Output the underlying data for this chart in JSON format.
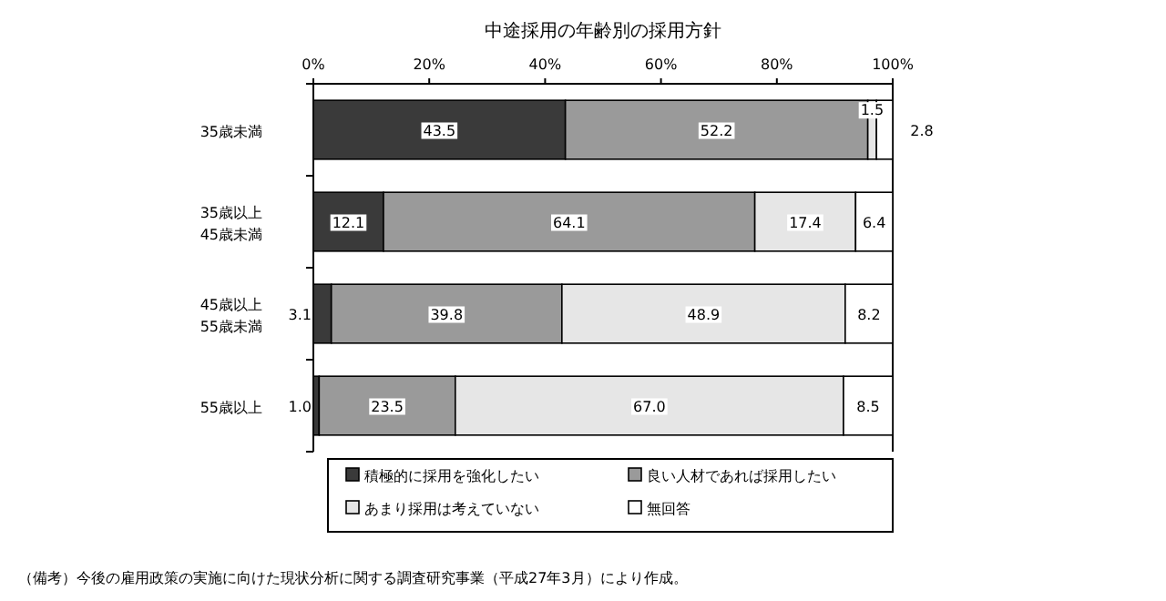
{
  "chart_data": {
    "type": "bar",
    "orientation": "horizontal",
    "stacked": true,
    "title": "中途採用の年齢別の採用方針",
    "categories": [
      "35歳未満",
      "35歳以上\n45歳未満",
      "45歳以上\n55歳未満",
      "55歳以上"
    ],
    "series": [
      {
        "name": "積極的に採用を強化したい",
        "color": "#3a3a3a",
        "values": [
          43.5,
          12.1,
          3.1,
          1.0
        ],
        "value_labels": [
          "43.5",
          "12.1",
          "3.1",
          "1.0"
        ]
      },
      {
        "name": "良い人材であれば採用したい",
        "color": "#9a9a9a",
        "values": [
          52.2,
          64.1,
          39.8,
          23.5
        ],
        "value_labels": [
          "52.2",
          "64.1",
          "39.8",
          "23.5"
        ]
      },
      {
        "name": "あまり採用は考えていない",
        "color": "#e6e6e6",
        "values": [
          1.5,
          17.4,
          48.9,
          67.0
        ],
        "value_labels": [
          "1.5",
          "17.4",
          "48.9",
          "67.0"
        ]
      },
      {
        "name": "無回答",
        "color": "#ffffff",
        "values": [
          2.8,
          6.4,
          8.2,
          8.5
        ],
        "value_labels": [
          "2.8",
          "6.4",
          "8.2",
          "8.5"
        ]
      }
    ],
    "xlim": [
      0,
      100
    ],
    "xticks": [
      {
        "value": 0,
        "label": "0%"
      },
      {
        "value": 20,
        "label": "20%"
      },
      {
        "value": 40,
        "label": "40%"
      },
      {
        "value": 60,
        "label": "60%"
      },
      {
        "value": 80,
        "label": "80%"
      },
      {
        "value": 100,
        "label": "100%"
      }
    ],
    "legend": "bottom",
    "grid": false,
    "annotations": [
      "（備考）今後の雇用政策の実施に向けた現状分析に関する調査研究事業（平成27年3月）により作成。"
    ]
  }
}
